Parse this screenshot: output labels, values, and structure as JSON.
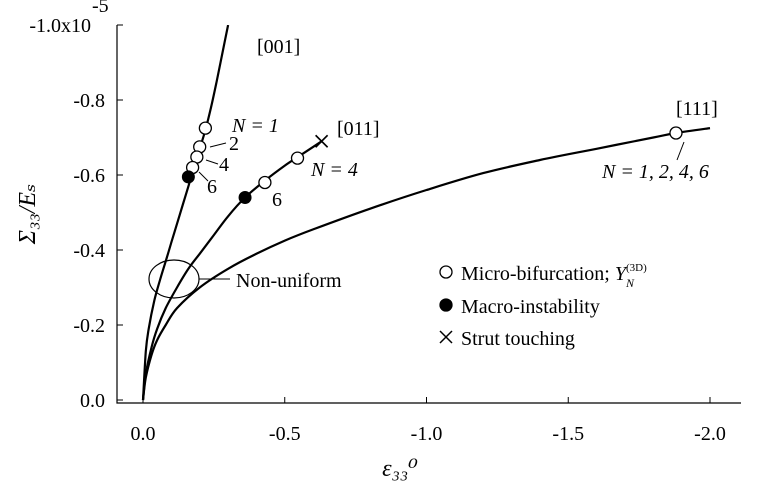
{
  "chart_data": {
    "type": "line",
    "title": "",
    "xlabel": "ε₃₃⁰",
    "ylabel": "Σ₃₃/Eₛ",
    "xlim": [
      0.0,
      -2.0
    ],
    "ylim": [
      0.0,
      -1e-05
    ],
    "x_ticks": [
      "0.0",
      "-0.5",
      "-1.0",
      "-1.5",
      "-2.0"
    ],
    "x_tick_values": [
      0.0,
      -0.5,
      -1.0,
      -1.5,
      -2.0
    ],
    "y_ticks": [
      "0.0",
      "-0.2",
      "-0.4",
      "-0.6",
      "-0.8",
      "-1.0x10"
    ],
    "y_tick_values": [
      0.0,
      -2e-06,
      -4e-06,
      -6e-06,
      -8e-06,
      -1e-05
    ],
    "y_exponent_label": "-5",
    "grid": false,
    "series": [
      {
        "name": "[001]",
        "x": [
          0.0,
          -0.01,
          -0.02,
          -0.04,
          -0.06,
          -0.08,
          -0.1,
          -0.12,
          -0.14,
          -0.16,
          -0.18,
          -0.2,
          -0.22,
          -0.24,
          -0.26,
          -0.28,
          -0.3
        ],
        "y": [
          0.0,
          -1.3e-06,
          -1.9e-06,
          -2.65e-06,
          -3.2e-06,
          -3.7e-06,
          -4.2e-06,
          -4.7e-06,
          -5.2e-06,
          -5.7e-06,
          -6.2e-06,
          -6.7e-06,
          -7.2e-06,
          -7.8e-06,
          -8.5e-06,
          -9.25e-06,
          -1e-05
        ]
      },
      {
        "name": "[011]",
        "x": [
          0.0,
          -0.01,
          -0.03,
          -0.05,
          -0.08,
          -0.12,
          -0.16,
          -0.2,
          -0.25,
          -0.3,
          -0.36,
          -0.43,
          -0.5,
          -0.55,
          -0.6,
          -0.63
        ],
        "y": [
          0.0,
          -7e-07,
          -1.4e-06,
          -1.9e-06,
          -2.45e-06,
          -3e-06,
          -3.5e-06,
          -3.9e-06,
          -4.4e-06,
          -4.9e-06,
          -5.4e-06,
          -5.85e-06,
          -6.25e-06,
          -6.5e-06,
          -6.75e-06,
          -6.9e-06
        ]
      },
      {
        "name": "[111]",
        "x": [
          0.0,
          -0.01,
          -0.03,
          -0.05,
          -0.08,
          -0.12,
          -0.2,
          -0.3,
          -0.4,
          -0.5,
          -0.6,
          -0.8,
          -1.0,
          -1.2,
          -1.4,
          -1.6,
          -1.8,
          -1.88,
          -2.0
        ],
        "y": [
          0.0,
          -6e-07,
          -1.2e-06,
          -1.6e-06,
          -2e-06,
          -2.45e-06,
          -3e-06,
          -3.5e-06,
          -3.9e-06,
          -4.25e-06,
          -4.55e-06,
          -5.1e-06,
          -5.6e-06,
          -6.05e-06,
          -6.4e-06,
          -6.7e-06,
          -7e-06,
          -7.12e-06,
          -7.25e-06
        ]
      }
    ],
    "markers": {
      "micro_bifurcation": [
        {
          "x": -0.22,
          "y": -7.25e-06
        },
        {
          "x": -0.2,
          "y": -6.75e-06
        },
        {
          "x": -0.19,
          "y": -6.48e-06
        },
        {
          "x": -0.175,
          "y": -6.2e-06
        },
        {
          "x": -0.545,
          "y": -6.45e-06
        },
        {
          "x": -0.43,
          "y": -5.8e-06
        },
        {
          "x": -1.88,
          "y": -7.12e-06
        }
      ],
      "macro_instability": [
        {
          "x": -0.16,
          "y": -5.95e-06
        },
        {
          "x": -0.36,
          "y": -5.4e-06
        }
      ],
      "strut_touching": [
        {
          "x": -0.63,
          "y": -6.9e-06
        }
      ]
    },
    "annotations": {
      "label_001": "[001]",
      "label_011": "[011]",
      "label_111": "[111]",
      "n1": "N = 1",
      "n2": "2",
      "n4a": "4",
      "n6a": "6",
      "n4b": "N = 4",
      "n6b": "6",
      "n_all": "N = 1, 2, 4, 6",
      "nonuniform": "Non-uniform"
    },
    "legend": {
      "placement": "bottom-right",
      "entries": [
        {
          "marker": "open-circle",
          "label": "Micro-bifurcation; ",
          "math": "Y",
          "sub": "N",
          "sup": "(3D)"
        },
        {
          "marker": "filled-circle",
          "label": "Macro-instability"
        },
        {
          "marker": "cross",
          "label": "Strut touching"
        }
      ]
    }
  }
}
